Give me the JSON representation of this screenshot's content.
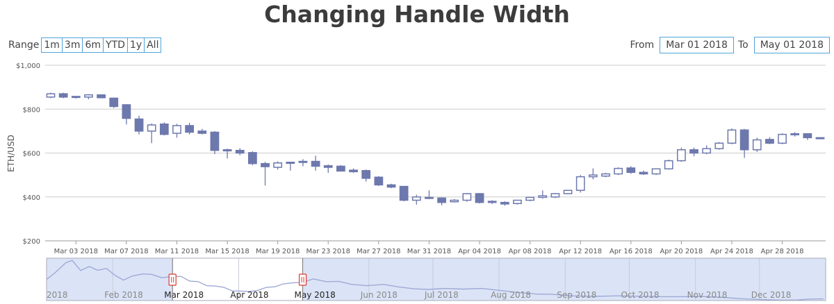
{
  "title": "Changing Handle Width",
  "range_selector": {
    "label": "Range",
    "buttons": [
      "1m",
      "3m",
      "6m",
      "YTD",
      "1y",
      "All"
    ]
  },
  "date_inputs": {
    "from_label": "From",
    "from_value": "Mar 01 2018",
    "to_label": "To",
    "to_value": "May 01 2018"
  },
  "colors": {
    "candle": "#6d78ad",
    "grid": "#cccccc",
    "navigator_fill": "#dbe4f6",
    "navigator_line": "#9fa9d6",
    "handle": "#e0362c"
  },
  "chart_data": {
    "type": "candlestick",
    "title": "Changing Handle Width",
    "ylabel": "ETH/USD",
    "ylim": [
      200,
      1000
    ],
    "y_ticks": [
      "$200",
      "$400",
      "$600",
      "$800",
      "$1,000"
    ],
    "y_tick_values": [
      200,
      400,
      600,
      800,
      1000
    ],
    "x_range": [
      "2018-03-01",
      "2018-05-01"
    ],
    "x_ticks": [
      "Mar 03 2018",
      "Mar 07 2018",
      "Mar 11 2018",
      "Mar 15 2018",
      "Mar 19 2018",
      "Mar 23 2018",
      "Mar 27 2018",
      "Mar 31 2018",
      "Apr 04 2018",
      "Apr 08 2018",
      "Apr 12 2018",
      "Apr 16 2018",
      "Apr 20 2018",
      "Apr 24 2018",
      "Apr 28 2018"
    ],
    "x_tick_dates": [
      "2018-03-03",
      "2018-03-07",
      "2018-03-11",
      "2018-03-15",
      "2018-03-19",
      "2018-03-23",
      "2018-03-27",
      "2018-03-31",
      "2018-04-04",
      "2018-04-08",
      "2018-04-12",
      "2018-04-16",
      "2018-04-20",
      "2018-04-24",
      "2018-04-28"
    ],
    "grid": true,
    "series": [
      {
        "candles": [
          {
            "date": "2018-03-01",
            "open": 855,
            "high": 875,
            "low": 850,
            "close": 870
          },
          {
            "date": "2018-03-02",
            "open": 870,
            "high": 875,
            "low": 850,
            "close": 855
          },
          {
            "date": "2018-03-03",
            "open": 855,
            "high": 860,
            "low": 848,
            "close": 858
          },
          {
            "date": "2018-03-04",
            "open": 855,
            "high": 868,
            "low": 845,
            "close": 865
          },
          {
            "date": "2018-03-05",
            "open": 865,
            "high": 866,
            "low": 852,
            "close": 852
          },
          {
            "date": "2018-03-06",
            "open": 850,
            "high": 852,
            "low": 805,
            "close": 812
          },
          {
            "date": "2018-03-07",
            "open": 820,
            "high": 822,
            "low": 730,
            "close": 758
          },
          {
            "date": "2018-03-08",
            "open": 755,
            "high": 770,
            "low": 685,
            "close": 700
          },
          {
            "date": "2018-03-09",
            "open": 700,
            "high": 735,
            "low": 645,
            "close": 728
          },
          {
            "date": "2018-03-10",
            "open": 732,
            "high": 740,
            "low": 680,
            "close": 685
          },
          {
            "date": "2018-03-11",
            "open": 690,
            "high": 733,
            "low": 670,
            "close": 725
          },
          {
            "date": "2018-03-12",
            "open": 725,
            "high": 738,
            "low": 685,
            "close": 695
          },
          {
            "date": "2018-03-13",
            "open": 700,
            "high": 710,
            "low": 685,
            "close": 690
          },
          {
            "date": "2018-03-14",
            "open": 695,
            "high": 700,
            "low": 595,
            "close": 612
          },
          {
            "date": "2018-03-15",
            "open": 615,
            "high": 620,
            "low": 575,
            "close": 610
          },
          {
            "date": "2018-03-16",
            "open": 612,
            "high": 622,
            "low": 590,
            "close": 600
          },
          {
            "date": "2018-03-17",
            "open": 602,
            "high": 608,
            "low": 545,
            "close": 552
          },
          {
            "date": "2018-03-18",
            "open": 552,
            "high": 560,
            "low": 452,
            "close": 538
          },
          {
            "date": "2018-03-19",
            "open": 535,
            "high": 562,
            "low": 525,
            "close": 555
          },
          {
            "date": "2018-03-20",
            "open": 555,
            "high": 560,
            "low": 520,
            "close": 558
          },
          {
            "date": "2018-03-21",
            "open": 558,
            "high": 572,
            "low": 540,
            "close": 562
          },
          {
            "date": "2018-03-22",
            "open": 562,
            "high": 588,
            "low": 520,
            "close": 540
          },
          {
            "date": "2018-03-23",
            "open": 542,
            "high": 548,
            "low": 510,
            "close": 535
          },
          {
            "date": "2018-03-24",
            "open": 540,
            "high": 545,
            "low": 520,
            "close": 518
          },
          {
            "date": "2018-03-25",
            "open": 522,
            "high": 530,
            "low": 510,
            "close": 515
          },
          {
            "date": "2018-03-26",
            "open": 520,
            "high": 525,
            "low": 470,
            "close": 485
          },
          {
            "date": "2018-03-27",
            "open": 490,
            "high": 495,
            "low": 450,
            "close": 455
          },
          {
            "date": "2018-03-28",
            "open": 455,
            "high": 460,
            "low": 440,
            "close": 445
          },
          {
            "date": "2018-03-29",
            "open": 448,
            "high": 450,
            "low": 380,
            "close": 385
          },
          {
            "date": "2018-03-30",
            "open": 385,
            "high": 410,
            "low": 365,
            "close": 400
          },
          {
            "date": "2018-03-31",
            "open": 398,
            "high": 430,
            "low": 390,
            "close": 395
          },
          {
            "date": "2018-04-01",
            "open": 395,
            "high": 398,
            "low": 362,
            "close": 375
          },
          {
            "date": "2018-04-02",
            "open": 378,
            "high": 390,
            "low": 375,
            "close": 385
          },
          {
            "date": "2018-04-03",
            "open": 385,
            "high": 418,
            "low": 378,
            "close": 415
          },
          {
            "date": "2018-04-04",
            "open": 415,
            "high": 418,
            "low": 370,
            "close": 375
          },
          {
            "date": "2018-04-05",
            "open": 380,
            "high": 385,
            "low": 368,
            "close": 375
          },
          {
            "date": "2018-04-06",
            "open": 375,
            "high": 380,
            "low": 360,
            "close": 368
          },
          {
            "date": "2018-04-07",
            "open": 370,
            "high": 385,
            "low": 365,
            "close": 385
          },
          {
            "date": "2018-04-08",
            "open": 385,
            "high": 400,
            "low": 380,
            "close": 398
          },
          {
            "date": "2018-04-09",
            "open": 398,
            "high": 430,
            "low": 392,
            "close": 405
          },
          {
            "date": "2018-04-10",
            "open": 400,
            "high": 418,
            "low": 395,
            "close": 415
          },
          {
            "date": "2018-04-11",
            "open": 415,
            "high": 432,
            "low": 412,
            "close": 430
          },
          {
            "date": "2018-04-12",
            "open": 430,
            "high": 500,
            "low": 420,
            "close": 492
          },
          {
            "date": "2018-04-13",
            "open": 492,
            "high": 530,
            "low": 480,
            "close": 500
          },
          {
            "date": "2018-04-14",
            "open": 495,
            "high": 510,
            "low": 490,
            "close": 505
          },
          {
            "date": "2018-04-15",
            "open": 505,
            "high": 535,
            "low": 500,
            "close": 530
          },
          {
            "date": "2018-04-16",
            "open": 532,
            "high": 540,
            "low": 505,
            "close": 512
          },
          {
            "date": "2018-04-17",
            "open": 512,
            "high": 520,
            "low": 500,
            "close": 505
          },
          {
            "date": "2018-04-18",
            "open": 505,
            "high": 530,
            "low": 500,
            "close": 528
          },
          {
            "date": "2018-04-19",
            "open": 528,
            "high": 570,
            "low": 525,
            "close": 565
          },
          {
            "date": "2018-04-20",
            "open": 565,
            "high": 625,
            "low": 560,
            "close": 615
          },
          {
            "date": "2018-04-21",
            "open": 615,
            "high": 625,
            "low": 585,
            "close": 600
          },
          {
            "date": "2018-04-22",
            "open": 600,
            "high": 635,
            "low": 595,
            "close": 620
          },
          {
            "date": "2018-04-23",
            "open": 620,
            "high": 650,
            "low": 615,
            "close": 645
          },
          {
            "date": "2018-04-24",
            "open": 645,
            "high": 712,
            "low": 640,
            "close": 705
          },
          {
            "date": "2018-04-25",
            "open": 705,
            "high": 710,
            "low": 578,
            "close": 615
          },
          {
            "date": "2018-04-26",
            "open": 615,
            "high": 670,
            "low": 605,
            "close": 660
          },
          {
            "date": "2018-04-27",
            "open": 662,
            "high": 672,
            "low": 640,
            "close": 645
          },
          {
            "date": "2018-04-28",
            "open": 645,
            "high": 690,
            "low": 640,
            "close": 685
          },
          {
            "date": "2018-04-29",
            "open": 685,
            "high": 695,
            "low": 675,
            "close": 688
          },
          {
            "date": "2018-04-30",
            "open": 688,
            "high": 690,
            "low": 660,
            "close": 670
          },
          {
            "date": "2018-05-01",
            "open": 670,
            "high": 672,
            "low": 665,
            "close": 668
          }
        ]
      }
    ],
    "navigator": {
      "labels": [
        "2018",
        "Feb 2018",
        "Mar 2018",
        "Apr 2018",
        "May 2018",
        "Jun 2018",
        "Jul 2018",
        "Aug 2018",
        "Sep 2018",
        "Oct 2018",
        "Nov 2018",
        "Dec 2018"
      ],
      "label_dates": [
        "2018-01-01",
        "2018-02-01",
        "2018-03-01",
        "2018-04-01",
        "2018-05-01",
        "2018-06-01",
        "2018-07-01",
        "2018-08-01",
        "2018-09-01",
        "2018-10-01",
        "2018-11-01",
        "2018-12-01"
      ],
      "x_range": [
        "2018-01-01",
        "2019-01-01"
      ],
      "selected_range": [
        "2018-03-01",
        "2018-05-01"
      ],
      "ylim": [
        80,
        1450
      ],
      "line": [
        {
          "date": "2018-01-01",
          "value": 760
        },
        {
          "date": "2018-01-05",
          "value": 980
        },
        {
          "date": "2018-01-10",
          "value": 1300
        },
        {
          "date": "2018-01-13",
          "value": 1380
        },
        {
          "date": "2018-01-17",
          "value": 1050
        },
        {
          "date": "2018-01-21",
          "value": 1180
        },
        {
          "date": "2018-01-25",
          "value": 1060
        },
        {
          "date": "2018-01-29",
          "value": 1120
        },
        {
          "date": "2018-02-02",
          "value": 900
        },
        {
          "date": "2018-02-06",
          "value": 740
        },
        {
          "date": "2018-02-10",
          "value": 870
        },
        {
          "date": "2018-02-15",
          "value": 940
        },
        {
          "date": "2018-02-19",
          "value": 930
        },
        {
          "date": "2018-02-24",
          "value": 820
        },
        {
          "date": "2018-03-01",
          "value": 860
        },
        {
          "date": "2018-03-05",
          "value": 860
        },
        {
          "date": "2018-03-09",
          "value": 710
        },
        {
          "date": "2018-03-13",
          "value": 690
        },
        {
          "date": "2018-03-17",
          "value": 560
        },
        {
          "date": "2018-03-21",
          "value": 550
        },
        {
          "date": "2018-03-25",
          "value": 510
        },
        {
          "date": "2018-03-29",
          "value": 390
        },
        {
          "date": "2018-04-02",
          "value": 385
        },
        {
          "date": "2018-04-06",
          "value": 370
        },
        {
          "date": "2018-04-10",
          "value": 410
        },
        {
          "date": "2018-04-14",
          "value": 505
        },
        {
          "date": "2018-04-18",
          "value": 525
        },
        {
          "date": "2018-04-22",
          "value": 620
        },
        {
          "date": "2018-04-26",
          "value": 650
        },
        {
          "date": "2018-05-01",
          "value": 670
        },
        {
          "date": "2018-05-06",
          "value": 780
        },
        {
          "date": "2018-05-12",
          "value": 690
        },
        {
          "date": "2018-05-18",
          "value": 700
        },
        {
          "date": "2018-05-24",
          "value": 600
        },
        {
          "date": "2018-05-31",
          "value": 560
        },
        {
          "date": "2018-06-08",
          "value": 600
        },
        {
          "date": "2018-06-15",
          "value": 520
        },
        {
          "date": "2018-06-22",
          "value": 460
        },
        {
          "date": "2018-06-29",
          "value": 440
        },
        {
          "date": "2018-07-06",
          "value": 470
        },
        {
          "date": "2018-07-15",
          "value": 450
        },
        {
          "date": "2018-07-24",
          "value": 470
        },
        {
          "date": "2018-08-01",
          "value": 410
        },
        {
          "date": "2018-08-10",
          "value": 340
        },
        {
          "date": "2018-08-18",
          "value": 290
        },
        {
          "date": "2018-08-26",
          "value": 280
        },
        {
          "date": "2018-09-05",
          "value": 230
        },
        {
          "date": "2018-09-15",
          "value": 215
        },
        {
          "date": "2018-09-25",
          "value": 230
        },
        {
          "date": "2018-10-05",
          "value": 220
        },
        {
          "date": "2018-10-15",
          "value": 205
        },
        {
          "date": "2018-10-25",
          "value": 205
        },
        {
          "date": "2018-11-05",
          "value": 210
        },
        {
          "date": "2018-11-14",
          "value": 180
        },
        {
          "date": "2018-11-22",
          "value": 140
        },
        {
          "date": "2018-12-01",
          "value": 115
        },
        {
          "date": "2018-12-10",
          "value": 95
        },
        {
          "date": "2018-12-18",
          "value": 95
        },
        {
          "date": "2018-12-25",
          "value": 130
        },
        {
          "date": "2018-12-31",
          "value": 135
        }
      ]
    }
  }
}
